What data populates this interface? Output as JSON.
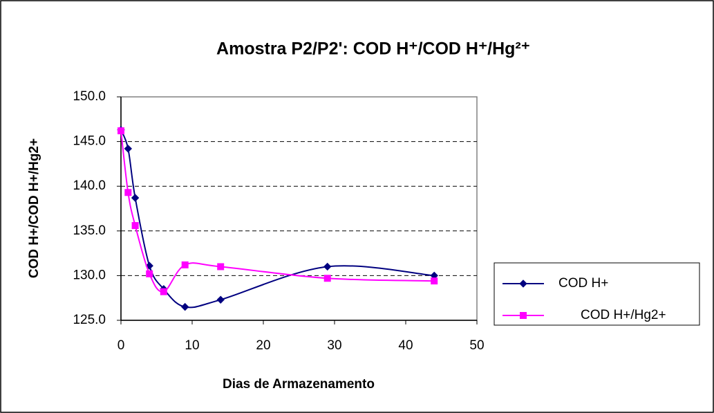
{
  "chart_data": {
    "type": "line",
    "title": "Amostra P2/P2': COD H⁺/COD H⁺/Hg²⁺",
    "x_label": "Dias de Armazenamento",
    "y_label": "COD H+/COD H+/Hg2+",
    "x": [
      0,
      1,
      2,
      4,
      6,
      9,
      14,
      29,
      44
    ],
    "series": [
      {
        "name": "COD H+",
        "color": "#000080",
        "marker": "diamond",
        "values": [
          146.3,
          144.2,
          138.7,
          131.1,
          128.5,
          126.5,
          127.3,
          131.0,
          130.0
        ]
      },
      {
        "name": "COD H+/Hg2+",
        "color": "#ff00ff",
        "marker": "square",
        "values": [
          146.2,
          139.3,
          135.6,
          130.2,
          128.2,
          131.2,
          131.0,
          129.7,
          129.4
        ]
      }
    ],
    "xlim": [
      0,
      50
    ],
    "xticks": [
      0,
      10,
      20,
      30,
      40,
      50
    ],
    "ylim": [
      125,
      150
    ],
    "yticks": [
      {
        "value": 125,
        "label": "125.0"
      },
      {
        "value": 130,
        "label": "130.0"
      },
      {
        "value": 135,
        "label": "135.0"
      },
      {
        "value": 140,
        "label": "140.0"
      },
      {
        "value": 145,
        "label": "145.0"
      },
      {
        "value": 150,
        "label": "150.0"
      }
    ],
    "grid": true,
    "smooth": true,
    "legend": "right"
  }
}
